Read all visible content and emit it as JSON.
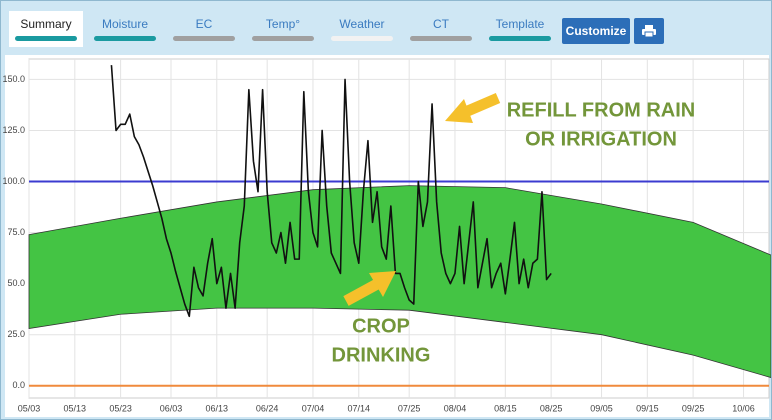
{
  "tabs": [
    {
      "label": "Summary",
      "color": "#1a9aa0",
      "selected": true
    },
    {
      "label": "Moisture",
      "color": "#1a9aa0"
    },
    {
      "label": "EC",
      "color": "#a0a0a0"
    },
    {
      "label": "Temp°",
      "color": "#a0a0a0"
    },
    {
      "label": "Weather",
      "color": "#f2f2f2"
    },
    {
      "label": "CT",
      "color": "#a0a0a0"
    },
    {
      "label": "Template",
      "color": "#1a9aa0"
    }
  ],
  "buttons": {
    "customize": "Customize"
  },
  "chart_data": {
    "type": "line",
    "color": "#111111",
    "x": [
      "05/21",
      "05/22",
      "05/23",
      "05/24",
      "05/25",
      "05/26",
      "05/27",
      "05/28",
      "05/29",
      "05/30",
      "05/31",
      "06/01",
      "06/02",
      "06/03",
      "06/04",
      "06/05",
      "06/06",
      "06/07",
      "06/08",
      "06/09",
      "06/10",
      "06/11",
      "06/12",
      "06/13",
      "06/14",
      "06/15",
      "06/16",
      "06/17",
      "06/18",
      "06/19",
      "06/20",
      "06/21",
      "06/22",
      "06/23",
      "06/24",
      "06/25",
      "06/26",
      "06/27",
      "06/28",
      "06/29",
      "06/30",
      "07/01",
      "07/02",
      "07/03",
      "07/04",
      "07/05",
      "07/06",
      "07/07",
      "07/08",
      "07/09",
      "07/10",
      "07/11",
      "07/12",
      "07/13",
      "07/14",
      "07/15",
      "07/16",
      "07/17",
      "07/18",
      "07/19",
      "07/20",
      "07/21",
      "07/22",
      "07/23",
      "07/24",
      "07/25",
      "07/26",
      "07/27",
      "07/28",
      "07/29",
      "07/30",
      "07/31",
      "08/01",
      "08/02",
      "08/03",
      "08/04",
      "08/05",
      "08/06",
      "08/07",
      "08/08",
      "08/09",
      "08/10",
      "08/11",
      "08/12",
      "08/13",
      "08/14",
      "08/15",
      "08/16",
      "08/17",
      "08/18",
      "08/19",
      "08/20",
      "08/21",
      "08/22",
      "08/23",
      "08/24",
      "08/25"
    ],
    "values": [
      157,
      125,
      128,
      128,
      133,
      122,
      118,
      112,
      105,
      98,
      90,
      82,
      72,
      65,
      56,
      48,
      40,
      34,
      58,
      48,
      44,
      60,
      72,
      50,
      58,
      38,
      55,
      38,
      70,
      88,
      145,
      110,
      95,
      145,
      95,
      70,
      65,
      75,
      60,
      80,
      62,
      62,
      144,
      95,
      75,
      68,
      125,
      88,
      65,
      60,
      55,
      150,
      100,
      70,
      60,
      95,
      120,
      80,
      95,
      68,
      62,
      88,
      55,
      55,
      48,
      42,
      40,
      100,
      78,
      90,
      138,
      90,
      65,
      55,
      50,
      55,
      78,
      50,
      70,
      90,
      48,
      60,
      72,
      48,
      55,
      60,
      45,
      62,
      80,
      50,
      62,
      48,
      60,
      62,
      95,
      52,
      55
    ],
    "band": {
      "color": "#44c444",
      "x": [
        "05/03",
        "05/23",
        "06/13",
        "07/04",
        "07/25",
        "08/15",
        "09/05",
        "09/25",
        "10/12"
      ],
      "upper": [
        74,
        82,
        90,
        96,
        98,
        97,
        89,
        80,
        64
      ],
      "lower": [
        28,
        35,
        38,
        38,
        37,
        31,
        25,
        15,
        4
      ]
    },
    "hlines": [
      {
        "value": 100,
        "color": "#3b3bd0"
      },
      {
        "value": 0,
        "color": "#f08a3c"
      }
    ],
    "xlim": [
      "05/03",
      "10/12"
    ],
    "xticks": [
      "05/03",
      "05/13",
      "05/23",
      "06/03",
      "06/13",
      "06/24",
      "07/04",
      "07/14",
      "07/25",
      "08/04",
      "08/15",
      "08/25",
      "09/05",
      "09/15",
      "09/25",
      "10/06"
    ],
    "ylim": [
      -6,
      160
    ],
    "yticks": [
      {
        "value": 0,
        "label": "0.0"
      },
      {
        "value": 25,
        "label": "25.0"
      },
      {
        "value": 50,
        "label": "50.0"
      },
      {
        "value": 75,
        "label": "75.0"
      },
      {
        "value": 100,
        "label": "100.0"
      },
      {
        "value": 125,
        "label": "125.0"
      },
      {
        "value": 150,
        "label": "150.0"
      }
    ],
    "grid": true,
    "annotation_color": "#73963a",
    "annotations": [
      {
        "lines": [
          "REFILL FROM RAIN",
          "OR IRRIGATION"
        ]
      },
      {
        "lines": [
          "CROP",
          "DRINKING"
        ]
      }
    ]
  }
}
